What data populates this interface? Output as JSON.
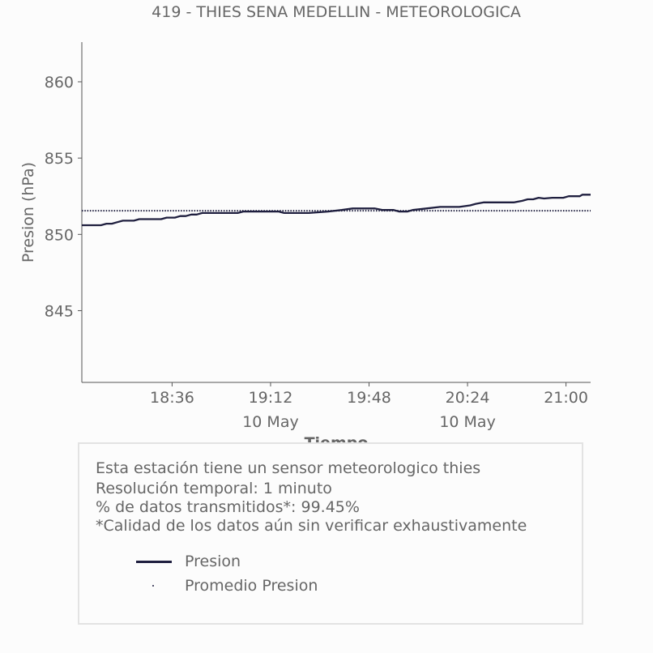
{
  "chart_data": {
    "type": "line",
    "title": "419 - THIES SENA MEDELLIN - METEOROLOGICA",
    "xlabel": "Tiempo",
    "ylabel": "Presion (hPa)",
    "xlim": [
      "18:03",
      "21:09"
    ],
    "ylim": [
      840.3,
      862.6
    ],
    "yticks": [
      845,
      850,
      855,
      860
    ],
    "xticks": [
      {
        "t": "18:36",
        "label": "18:36",
        "sub": ""
      },
      {
        "t": "19:12",
        "label": "19:12",
        "sub": "10 May"
      },
      {
        "t": "19:48",
        "label": "19:48",
        "sub": ""
      },
      {
        "t": "20:24",
        "label": "20:24",
        "sub": "10 May"
      },
      {
        "t": "21:00",
        "label": "21:00",
        "sub": ""
      }
    ],
    "grid": false,
    "series": [
      {
        "name": "Presion",
        "color": "#1f1f3f",
        "style": "solid",
        "points": [
          [
            "18:03",
            850.6
          ],
          [
            "18:10",
            850.6
          ],
          [
            "18:12",
            850.7
          ],
          [
            "18:14",
            850.7
          ],
          [
            "18:16",
            850.8
          ],
          [
            "18:18",
            850.9
          ],
          [
            "18:22",
            850.9
          ],
          [
            "18:24",
            851.0
          ],
          [
            "18:32",
            851.0
          ],
          [
            "18:34",
            851.1
          ],
          [
            "18:37",
            851.1
          ],
          [
            "18:39",
            851.2
          ],
          [
            "18:41",
            851.2
          ],
          [
            "18:43",
            851.3
          ],
          [
            "18:45",
            851.3
          ],
          [
            "18:47",
            851.4
          ],
          [
            "19:00",
            851.4
          ],
          [
            "19:02",
            851.5
          ],
          [
            "19:15",
            851.5
          ],
          [
            "19:17",
            851.4
          ],
          [
            "19:26",
            851.4
          ],
          [
            "19:33",
            851.5
          ],
          [
            "19:38",
            851.6
          ],
          [
            "19:42",
            851.7
          ],
          [
            "19:50",
            851.7
          ],
          [
            "19:53",
            851.6
          ],
          [
            "19:57",
            851.6
          ],
          [
            "19:59",
            851.5
          ],
          [
            "20:02",
            851.5
          ],
          [
            "20:04",
            851.6
          ],
          [
            "20:09",
            851.7
          ],
          [
            "20:14",
            851.8
          ],
          [
            "20:21",
            851.8
          ],
          [
            "20:25",
            851.9
          ],
          [
            "20:27",
            852.0
          ],
          [
            "20:30",
            852.1
          ],
          [
            "20:41",
            852.1
          ],
          [
            "20:44",
            852.2
          ],
          [
            "20:46",
            852.3
          ],
          [
            "20:48",
            852.3
          ],
          [
            "20:50",
            852.4
          ],
          [
            "20:52",
            852.35
          ],
          [
            "20:55",
            852.4
          ],
          [
            "20:59",
            852.4
          ],
          [
            "21:01",
            852.5
          ],
          [
            "21:05",
            852.5
          ],
          [
            "21:06",
            852.6
          ],
          [
            "21:09",
            852.6
          ]
        ]
      },
      {
        "name": "Promedio Presion",
        "color": "#1f1f3f",
        "style": "dotted",
        "points": [
          [
            "18:03",
            851.55
          ],
          [
            "21:09",
            851.55
          ]
        ]
      }
    ]
  },
  "info": {
    "line1": "Esta estación tiene un sensor meteorologico thies",
    "line2": "Resolución temporal: 1 minuto",
    "line3": "% de datos transmitidos*: 99.45%",
    "line4": "*Calidad de los datos aún sin verificar exhaustivamente"
  },
  "legend": {
    "item1": "Presion",
    "item2": "Promedio Presion"
  }
}
